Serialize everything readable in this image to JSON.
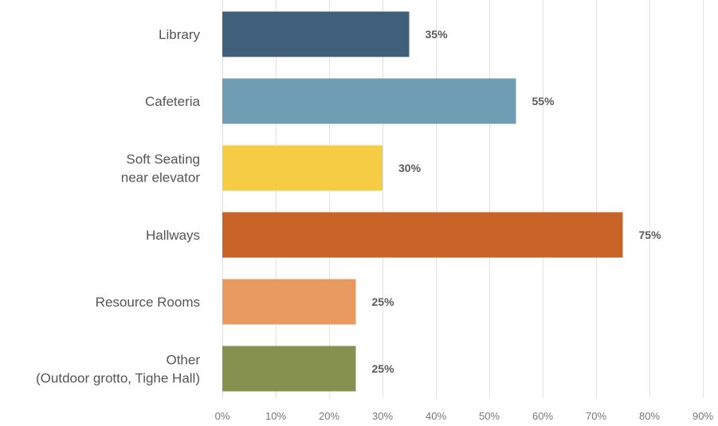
{
  "chart_data": {
    "type": "bar",
    "orientation": "horizontal",
    "categories": [
      [
        "Library"
      ],
      [
        "Cafeteria"
      ],
      [
        "Soft Seating",
        "near elevator"
      ],
      [
        "Hallways"
      ],
      [
        "Resource Rooms"
      ],
      [
        "Other",
        "(Outdoor grotto, Tighe Hall)"
      ]
    ],
    "values": [
      35,
      55,
      30,
      75,
      25,
      25
    ],
    "value_labels": [
      "35%",
      "55%",
      "30%",
      "75%",
      "25%",
      "25%"
    ],
    "colors": [
      "#3f5f7a",
      "#6f9db4",
      "#f6cc44",
      "#c86327",
      "#e99a60",
      "#87914f"
    ],
    "xlim": [
      0,
      90
    ],
    "x_ticks": [
      0,
      10,
      20,
      30,
      40,
      50,
      60,
      70,
      80,
      90
    ],
    "x_tick_labels": [
      "0%",
      "10%",
      "20%",
      "30%",
      "40%",
      "50%",
      "60%",
      "70%",
      "80%",
      "90%"
    ],
    "grid": "vertical",
    "legend": "none"
  }
}
